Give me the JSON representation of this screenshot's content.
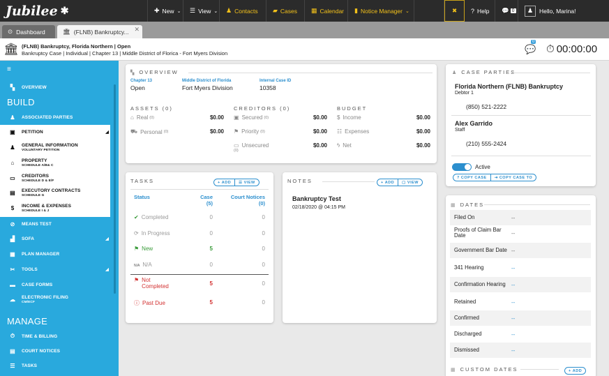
{
  "nav": {
    "logo": "Jubilee",
    "new": "New",
    "view": "View",
    "contacts": "Contacts",
    "cases": "Cases",
    "calendar": "Calendar",
    "notice_manager": "Notice Manager",
    "help": "Help",
    "messages_count": "0",
    "greeting": "Hello, Marina!"
  },
  "tabs": [
    {
      "label": "Dashboard"
    },
    {
      "label": "(FLNB) Bankruptcy..."
    }
  ],
  "case_header": {
    "title": "(FLNB) Bankruptcy, Florida Northern",
    "status": "Open",
    "details": "Bankruptcy Case  |  Individual  |  Chapter 13  |  Middle District of Florica - Fort Myers Division",
    "chat_badge": "0",
    "timer": "00:00:00"
  },
  "sidebar": {
    "overview": "OVERVIEW",
    "build": "BUILD",
    "associated_parties": "ASSOCIATED PARTIES",
    "petition": "PETITION",
    "general_info": "GENERAL INFORMATION",
    "general_info_sub": "VOLUNTARY PETITION",
    "property": "PROPERTY",
    "property_sub": "SCHEDULE A/B& C",
    "creditors": "CREDITORS",
    "creditors_sub": "SCHEDULE D & E/F",
    "executory": "EXECUTORY CONTRACTS",
    "executory_sub": "SCHEDULE G",
    "income": "INCOME & EXPENSES",
    "income_sub": "SCHEDULE I & J",
    "means_test": "MEANS TEST",
    "sofa": "SOFA",
    "plan_manager": "PLAN MANAGER",
    "tools": "TOOLS",
    "case_forms": "CASE FORMS",
    "electronic_filing": "ELECTRONIC FILING",
    "electronic_filing_sub": "CM/ECF",
    "manage": "MANAGE",
    "time_billing": "TIME & BILLING",
    "court_notices": "COURT NOTICES",
    "tasks": "TASKS"
  },
  "overview": {
    "title": "OVERVIEW",
    "chapter_label": "Chapter 13",
    "chapter_value": "Open",
    "district_label": "Middle District of Florida",
    "district_value": "Fort Myers Division",
    "internal_label": "Internal Case ID",
    "internal_value": "10358",
    "assets_title": "ASSETS (0)",
    "creditors_title": "CREDITORS (0)",
    "budget_title": "BUDGET",
    "assets": [
      {
        "label": "Real",
        "count": "(0)",
        "amount": "$0.00"
      },
      {
        "label": "Personal",
        "count": "(0)",
        "amount": "$0.00"
      }
    ],
    "creditors": [
      {
        "label": "Secured",
        "count": "(0)",
        "amount": "$0.00"
      },
      {
        "label": "Priority",
        "count": "(0)",
        "amount": "$0.00"
      },
      {
        "label": "Unsecured",
        "count": "(0)",
        "amount": "$0.00"
      }
    ],
    "budget": [
      {
        "label": "Income",
        "amount": "$0.00"
      },
      {
        "label": "Expenses",
        "amount": "$0.00"
      },
      {
        "label": "Net",
        "amount": "$0.00"
      }
    ]
  },
  "tasks": {
    "title": "TASKS",
    "add": "ADD",
    "view": "VIEW",
    "col_status": "Status",
    "col_case": "Case",
    "col_case_count": "(5)",
    "col_court": "Court Notices",
    "col_court_count": "(0)",
    "rows": [
      {
        "status": "Completed",
        "case": "0",
        "court": "0"
      },
      {
        "status": "In Progress",
        "case": "0",
        "court": "0"
      },
      {
        "status": "New",
        "case": "5",
        "court": "0"
      },
      {
        "status": "N/A",
        "case": "0",
        "court": "0"
      },
      {
        "status": "Not Completed",
        "case": "5",
        "court": "0"
      },
      {
        "status": "Past Due",
        "case": "5",
        "court": "0"
      }
    ]
  },
  "notes": {
    "title": "NOTES",
    "add": "ADD",
    "view": "VIEW",
    "note_title": "Bankruptcy Test",
    "note_date": "02/18/2020 @ 04:15 PM"
  },
  "parties": {
    "title": "CASE PARTIES",
    "debtor_name": "Florida Northern (FLNB) Bankruptcy",
    "debtor_role": "Debtor 1",
    "debtor_phone": "(850) 521-2222",
    "staff_name": "Alex Garrido",
    "staff_role": "Staff",
    "staff_phone": "(210) 555-2424",
    "active": "Active",
    "copy_case": "COPY CASE",
    "copy_case_to": "COPY CASE TO"
  },
  "dates": {
    "title": "DATES",
    "rows": [
      {
        "label": "Filed On",
        "value": "--"
      },
      {
        "label": "Proofs of Claim Bar Date",
        "value": "--"
      },
      {
        "label": "Government Bar Date",
        "value": "--"
      },
      {
        "label": "341 Hearing",
        "value": "--"
      },
      {
        "label": "Confirmation Hearing",
        "value": "--"
      },
      {
        "label": "Retained",
        "value": "--"
      },
      {
        "label": "Confirmed",
        "value": "--"
      },
      {
        "label": "Discharged",
        "value": "--"
      },
      {
        "label": "Dismissed",
        "value": "--"
      }
    ],
    "custom_title": "CUSTOM DATES",
    "custom_add": "ADD"
  },
  "colors": {
    "accent": "#2c8fce",
    "sidebar": "#29a9dd",
    "nav": "#2b2b2b",
    "gold": "#f3c11a",
    "success": "#3a9b3a",
    "danger": "#d23030"
  }
}
